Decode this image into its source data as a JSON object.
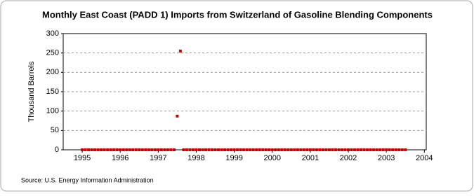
{
  "chart_data": {
    "type": "scatter",
    "title": "Monthly East Coast (PADD 1) Imports from Switzerland of Gasoline Blending Components",
    "y_label": "Thousand Barrels",
    "source": "Source: U.S. Energy Information Administration",
    "x": [
      1995,
      1995.083,
      1995.167,
      1995.25,
      1995.333,
      1995.417,
      1995.5,
      1995.583,
      1995.667,
      1995.75,
      1995.833,
      1995.917,
      1996,
      1996.083,
      1996.167,
      1996.25,
      1996.333,
      1996.417,
      1996.5,
      1996.583,
      1996.667,
      1996.75,
      1996.833,
      1996.917,
      1997,
      1997.083,
      1997.167,
      1997.25,
      1997.333,
      1997.417,
      1997.5,
      1997.583,
      1997.667,
      1997.75,
      1997.833,
      1997.917,
      1998,
      1998.083,
      1998.167,
      1998.25,
      1998.333,
      1998.417,
      1998.5,
      1998.583,
      1998.667,
      1998.75,
      1998.833,
      1998.917,
      1999,
      1999.083,
      1999.167,
      1999.25,
      1999.333,
      1999.417,
      1999.5,
      1999.583,
      1999.667,
      1999.75,
      1999.833,
      1999.917,
      2000,
      2000.083,
      2000.167,
      2000.25,
      2000.333,
      2000.417,
      2000.5,
      2000.583,
      2000.667,
      2000.75,
      2000.833,
      2000.917,
      2001,
      2001.083,
      2001.167,
      2001.25,
      2001.333,
      2001.417,
      2001.5,
      2001.583,
      2001.667,
      2001.75,
      2001.833,
      2001.917,
      2002,
      2002.083,
      2002.167,
      2002.25,
      2002.333,
      2002.417,
      2002.5,
      2002.583,
      2002.667,
      2002.75,
      2002.833,
      2002.917,
      2003,
      2003.083,
      2003.167,
      2003.25,
      2003.333,
      2003.417,
      2003.5
    ],
    "series": [
      {
        "color": "#cc0000",
        "values": [
          0,
          0,
          0,
          0,
          0,
          0,
          0,
          0,
          0,
          0,
          0,
          0,
          0,
          0,
          0,
          0,
          0,
          0,
          0,
          0,
          0,
          0,
          0,
          0,
          0,
          0,
          0,
          0,
          0,
          0,
          87,
          255,
          0,
          0,
          0,
          0,
          0,
          0,
          0,
          0,
          0,
          0,
          0,
          0,
          0,
          0,
          0,
          0,
          0,
          0,
          0,
          0,
          0,
          0,
          0,
          0,
          0,
          0,
          0,
          0,
          0,
          0,
          0,
          0,
          0,
          0,
          0,
          0,
          0,
          0,
          0,
          0,
          0,
          0,
          0,
          0,
          0,
          0,
          0,
          0,
          0,
          0,
          0,
          0,
          0,
          0,
          0,
          0,
          0,
          0,
          0,
          0,
          0,
          0,
          0,
          0,
          0,
          0,
          0,
          0,
          0,
          0,
          0
        ]
      }
    ],
    "xlim": [
      1994.5,
      2004.05
    ],
    "xticks": [
      1995,
      1996,
      1997,
      1998,
      1999,
      2000,
      2001,
      2002,
      2003,
      2004
    ],
    "ylim": [
      0,
      300
    ],
    "yticks": [
      0,
      50,
      100,
      150,
      200,
      250,
      300
    ],
    "grid": true
  }
}
